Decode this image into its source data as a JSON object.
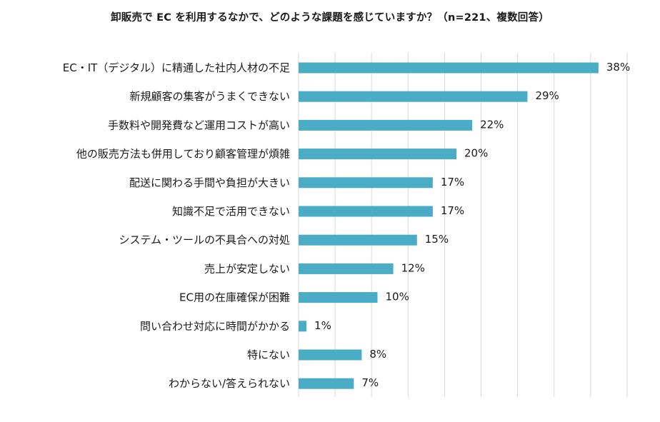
{
  "chart_data": {
    "type": "bar",
    "orientation": "horizontal",
    "title": "卸販売で EC を利用するなかで、どのような課題を感じていますか？（n=221、複数回答）",
    "categories": [
      "EC・IT（デジタル）に精通した社内人材の不足",
      "新規顧客の集客がうまくできない",
      "手数料や開発費など運用コストが高い",
      "他の販売方法も併用しており顧客管理が煩雑",
      "配送に関わる手間や負担が大きい",
      "知識不足で活用できない",
      "システム・ツールの不具合への対処",
      "売上が安定しない",
      "EC用の在庫確保が困難",
      "問い合わせ対応に時間がかかる",
      "特にない",
      "わからない/答えられない"
    ],
    "values": [
      38,
      29,
      22,
      20,
      17,
      17,
      15,
      12,
      10,
      1,
      8,
      7
    ],
    "value_labels": [
      "38%",
      "29%",
      "22%",
      "20%",
      "17%",
      "17%",
      "15%",
      "12%",
      "10%",
      "1%",
      "8%",
      "7%"
    ],
    "xlim": [
      0,
      45
    ],
    "grid": true,
    "legend": "none",
    "bar_color": "#4bacc6"
  }
}
